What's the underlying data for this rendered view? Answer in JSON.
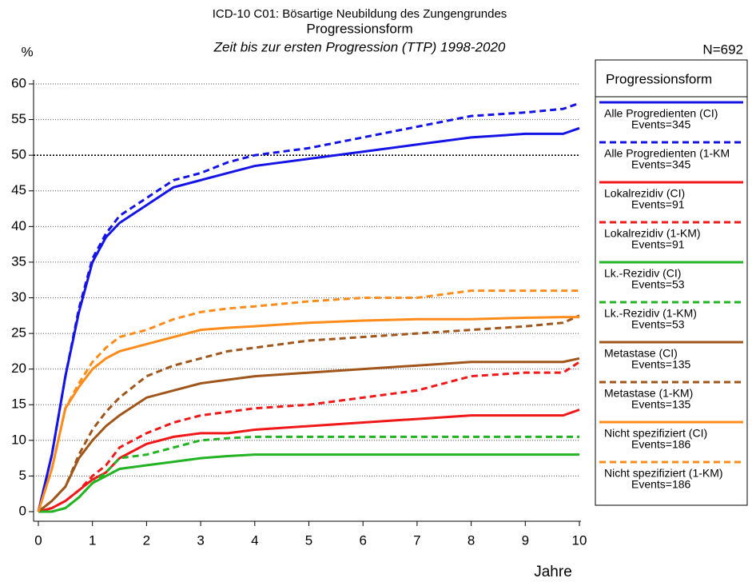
{
  "chart_data": {
    "type": "line",
    "title": "ICD-10 C01: Bösartige Neubildung des Zungengrundes",
    "subtitle": "Progressionsform",
    "subtitle2": "Zeit bis zur ersten Progression (TTP) 1998-2020",
    "y_label": "%",
    "x_label": "Jahre",
    "n_label": "N=692",
    "legend_title": "Progressionsform",
    "grid": true,
    "xlim": [
      0,
      10
    ],
    "xticks": [
      0,
      1,
      2,
      3,
      4,
      5,
      6,
      7,
      8,
      9,
      10
    ],
    "ylim": [
      0,
      60
    ],
    "yticks": [
      0,
      5,
      10,
      15,
      20,
      25,
      30,
      35,
      40,
      45,
      50,
      55,
      60
    ],
    "x": [
      0,
      0.25,
      0.5,
      0.75,
      1,
      1.25,
      1.5,
      2,
      2.5,
      3,
      3.5,
      4,
      5,
      6,
      7,
      8,
      9,
      9.7,
      10
    ],
    "series": [
      {
        "name": "Alle Progredienten (CI)",
        "events": "Events=345",
        "color": "#1414e6",
        "dash": false,
        "values": [
          0,
          8,
          19,
          28,
          35,
          38.5,
          40.5,
          43,
          45.5,
          46.5,
          47.5,
          48.5,
          49.5,
          50.5,
          51.5,
          52.5,
          53,
          53,
          53.8
        ]
      },
      {
        "name": "Alle Progredienten (1-KM",
        "events": "Events=345",
        "color": "#1414e6",
        "dash": true,
        "values": [
          0,
          8,
          19,
          28.5,
          35.5,
          39,
          41.5,
          44,
          46.5,
          47.5,
          49,
          50,
          51,
          52.5,
          54,
          55.5,
          56,
          56.5,
          57.3
        ]
      },
      {
        "name": "Lokalrezidiv (CI)",
        "events": "Events=91",
        "color": "#f01818",
        "dash": false,
        "values": [
          0,
          0.5,
          1.5,
          3,
          4.5,
          5.5,
          7.5,
          9.5,
          10.5,
          11,
          11,
          11.5,
          12,
          12.5,
          13,
          13.5,
          13.5,
          13.5,
          14.3
        ]
      },
      {
        "name": "Lokalrezidiv (1-KM)",
        "events": "Events=91",
        "color": "#f01818",
        "dash": true,
        "values": [
          0,
          0.5,
          1.5,
          3,
          5,
          6.5,
          9,
          11,
          12.5,
          13.5,
          14,
          14.5,
          15,
          16,
          17,
          19,
          19.5,
          19.5,
          21
        ]
      },
      {
        "name": "Lk.-Rezidiv (CI)",
        "events": "Events=53",
        "color": "#22b422",
        "dash": false,
        "values": [
          0,
          0,
          0.5,
          2,
          4,
          5,
          6,
          6.5,
          7,
          7.5,
          7.8,
          8,
          8,
          8,
          8,
          8,
          8,
          8,
          8
        ]
      },
      {
        "name": "Lk.-Rezidiv (1-KM)",
        "events": "Events=53",
        "color": "#22b422",
        "dash": true,
        "values": [
          0,
          0,
          0.5,
          2,
          4,
          5.5,
          7.5,
          8,
          9,
          10,
          10.3,
          10.5,
          10.5,
          10.5,
          10.5,
          10.5,
          10.5,
          10.5,
          10.5
        ]
      },
      {
        "name": "Metastase (CI)",
        "events": "Events=135",
        "color": "#a0561a",
        "dash": false,
        "values": [
          0,
          1.5,
          3.5,
          7.5,
          10,
          12,
          13.5,
          16,
          17,
          18,
          18.5,
          19,
          19.5,
          20,
          20.5,
          21,
          21,
          21,
          21.5
        ]
      },
      {
        "name": "Metastase (1-KM)",
        "events": "Events=135",
        "color": "#a0561a",
        "dash": true,
        "values": [
          0,
          1.5,
          3.5,
          8,
          11.5,
          14,
          16,
          19,
          20.5,
          21.5,
          22.5,
          23,
          24,
          24.5,
          25,
          25.5,
          26,
          26.5,
          27.5
        ]
      },
      {
        "name": "Nicht spezifiziert (CI)",
        "events": "Events=186",
        "color": "#ff8c1a",
        "dash": false,
        "values": [
          0,
          6,
          14.5,
          17.5,
          20,
          21.5,
          22.5,
          23.5,
          24.5,
          25.5,
          25.8,
          26,
          26.5,
          26.8,
          27,
          27,
          27.2,
          27.3,
          27.3
        ]
      },
      {
        "name": "Nicht spezifiziert (1-KM)",
        "events": "Events=186",
        "color": "#ff8c1a",
        "dash": true,
        "values": [
          0,
          6,
          14.5,
          18,
          21,
          23,
          24.5,
          25.5,
          27,
          28,
          28.5,
          28.8,
          29.5,
          30,
          30,
          31,
          31,
          31,
          31
        ]
      }
    ]
  }
}
